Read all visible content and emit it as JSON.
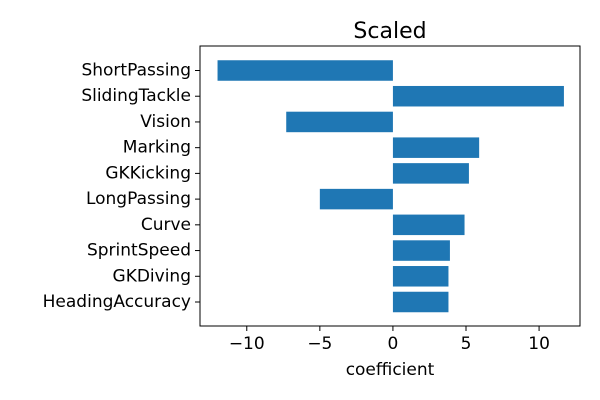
{
  "chart_data": {
    "type": "bar",
    "orientation": "horizontal",
    "title": "Scaled",
    "xlabel": "coefficient",
    "ylabel": "",
    "categories": [
      "ShortPassing",
      "SlidingTackle",
      "Vision",
      "Marking",
      "GKKicking",
      "LongPassing",
      "Curve",
      "SprintSpeed",
      "GKDiving",
      "HeadingAccuracy"
    ],
    "values": [
      -12.0,
      11.7,
      -7.3,
      5.9,
      5.2,
      -5.0,
      4.9,
      3.9,
      3.8,
      3.8
    ],
    "xlim": [
      -13.2,
      12.8
    ],
    "xticks": [
      -10,
      -5,
      0,
      5,
      10
    ],
    "xtick_labels": [
      "−10",
      "−5",
      "0",
      "5",
      "10"
    ],
    "bar_color": "#1f77b4",
    "grid": false,
    "legend": "none"
  }
}
